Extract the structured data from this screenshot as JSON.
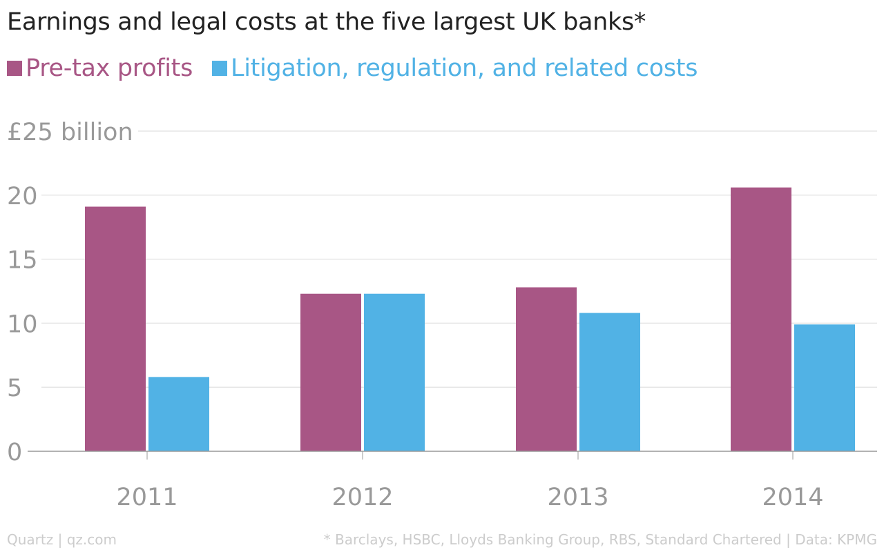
{
  "title": "Earnings and legal costs at the five largest UK banks*",
  "colors": {
    "profits": "#a85685",
    "litigation": "#51b2e5",
    "tick_text": "#999999",
    "grid": "#e6e6e6",
    "axis": "#999999"
  },
  "footer": {
    "left": "Quartz | qz.com",
    "right": "* Barclays, HSBC, Lloyds Banking Group, RBS, Standard Chartered | Data: KPMG"
  },
  "chart_data": {
    "type": "bar",
    "title": "Earnings and legal costs at the five largest UK banks*",
    "categories": [
      "2011",
      "2012",
      "2013",
      "2014"
    ],
    "series": [
      {
        "name": "Pre-tax profits",
        "values": [
          19.1,
          12.3,
          12.8,
          20.6
        ]
      },
      {
        "name": "Litigation, regulation, and related costs",
        "values": [
          5.8,
          12.3,
          10.8,
          9.9
        ]
      }
    ],
    "ylim": [
      0,
      25
    ],
    "y_ticks": [
      "0",
      "5",
      "10",
      "15",
      "20",
      "£25 billion"
    ],
    "y_tick_values": [
      0,
      5,
      10,
      15,
      20,
      25
    ],
    "grid": true,
    "legend_position": "top-left"
  }
}
